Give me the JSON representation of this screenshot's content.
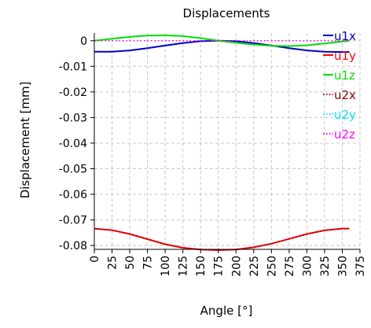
{
  "chart_data": {
    "type": "line",
    "title": "Displacements",
    "xlabel": "Angle [°]",
    "ylabel": "Displacement [mm]",
    "xlim": [
      0,
      375
    ],
    "ylim": [
      -0.0815,
      0.003
    ],
    "x_ticks": [
      0,
      25,
      50,
      75,
      100,
      125,
      150,
      175,
      200,
      225,
      250,
      275,
      300,
      325,
      350,
      375
    ],
    "y_ticks": [
      0,
      -0.01,
      -0.02,
      -0.03,
      -0.04,
      -0.05,
      -0.06,
      -0.07,
      -0.08
    ],
    "grid": true,
    "legend_position": "right",
    "x": [
      0,
      25,
      50,
      75,
      100,
      125,
      150,
      175,
      200,
      225,
      250,
      275,
      300,
      325,
      350,
      360
    ],
    "series": [
      {
        "name": "u1x",
        "color": "#0000cc",
        "dash": "solid",
        "values": [
          -0.0043,
          -0.0043,
          -0.0038,
          -0.0029,
          -0.0019,
          -0.0009,
          -0.0002,
          0.0,
          -0.0002,
          -0.0009,
          -0.0019,
          -0.0029,
          -0.0038,
          -0.0043,
          -0.0044,
          -0.0044
        ]
      },
      {
        "name": "u1y",
        "color": "#ff0000",
        "dash": "solid",
        "values": [
          -0.0734,
          -0.074,
          -0.0755,
          -0.0775,
          -0.0795,
          -0.0809,
          -0.0816,
          -0.0818,
          -0.0816,
          -0.0807,
          -0.0793,
          -0.0774,
          -0.0755,
          -0.0741,
          -0.0734,
          -0.0734
        ]
      },
      {
        "name": "u1z",
        "color": "#00dd00",
        "dash": "solid",
        "values": [
          0.0,
          0.0008,
          0.0015,
          0.002,
          0.0021,
          0.0018,
          0.001,
          0.0,
          -0.0008,
          -0.0015,
          -0.002,
          -0.0021,
          -0.0018,
          -0.0011,
          -0.0003,
          0.0
        ]
      },
      {
        "name": "u2x",
        "color": "#8b0000",
        "dash": "dotted",
        "values": [
          -0.0734,
          -0.074,
          -0.0755,
          -0.0775,
          -0.0795,
          -0.0809,
          -0.0816,
          -0.0818,
          -0.0816,
          -0.0807,
          -0.0793,
          -0.0774,
          -0.0755,
          -0.0741,
          -0.0734,
          -0.0734
        ]
      },
      {
        "name": "u2y",
        "color": "#00e5ee",
        "dash": "dotted",
        "values": [
          0,
          0,
          0,
          0,
          0,
          0,
          0,
          0,
          0,
          0,
          0,
          0,
          0,
          0,
          0,
          0
        ]
      },
      {
        "name": "u2z",
        "color": "#ff00ff",
        "dash": "dotted",
        "values": [
          0,
          0,
          0,
          0,
          0,
          0,
          0,
          0,
          0,
          0,
          0,
          0,
          0,
          0,
          0,
          0
        ]
      }
    ]
  }
}
